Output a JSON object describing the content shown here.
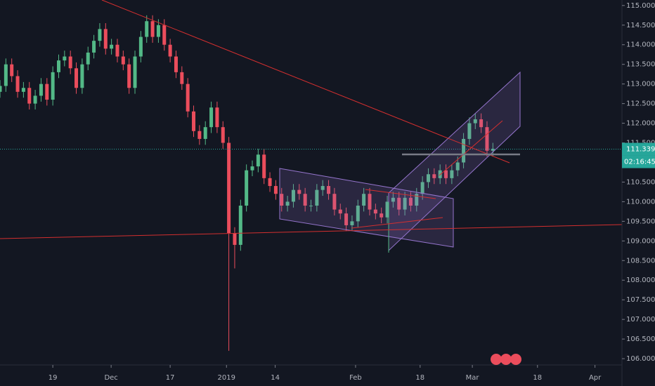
{
  "chart_data": {
    "type": "candlestick",
    "x": [
      -9,
      -8,
      -7,
      -6,
      -5,
      -4,
      -3,
      -2,
      -1,
      0,
      1,
      2,
      3,
      4,
      5,
      6,
      7,
      8,
      9,
      10,
      11,
      12,
      13,
      14,
      15,
      16,
      17,
      18,
      19,
      20,
      21,
      22,
      23,
      24,
      25,
      26,
      27,
      28,
      29,
      30,
      31,
      32,
      33,
      34,
      35,
      36,
      37,
      38,
      39,
      40,
      41,
      42,
      43,
      44,
      45,
      46,
      47,
      48,
      49,
      50,
      51,
      52,
      53,
      54,
      55,
      56,
      57,
      58,
      59,
      60,
      61,
      62,
      63,
      64,
      65,
      66,
      67,
      68,
      69,
      70,
      71,
      72,
      73,
      74,
      75
    ],
    "open": [
      112.8,
      112.95,
      113.5,
      113.2,
      112.8,
      112.9,
      112.5,
      112.7,
      113.0,
      112.6,
      113.3,
      113.6,
      113.7,
      113.4,
      112.9,
      113.5,
      113.8,
      114.1,
      114.4,
      113.9,
      114.0,
      113.7,
      113.5,
      112.9,
      113.7,
      114.2,
      114.6,
      114.2,
      114.5,
      114.0,
      113.7,
      113.3,
      113.0,
      112.3,
      111.8,
      111.6,
      111.9,
      112.4,
      111.9,
      111.5,
      109.2,
      108.9,
      109.9,
      110.8,
      110.9,
      111.2,
      110.6,
      110.4,
      110.2,
      109.9,
      110.0,
      110.3,
      110.2,
      109.9,
      109.9,
      110.3,
      110.4,
      110.2,
      109.8,
      109.7,
      109.4,
      109.5,
      109.9,
      110.2,
      109.8,
      109.7,
      109.6,
      110.0,
      110.1,
      109.8,
      110.1,
      109.9,
      110.2,
      110.5,
      110.7,
      110.6,
      110.8,
      110.6,
      110.8,
      111.0,
      111.6,
      112.0,
      112.1,
      111.9,
      111.3
    ],
    "high": [
      113.1,
      113.65,
      113.65,
      113.35,
      113.05,
      113.05,
      112.85,
      113.15,
      113.15,
      113.45,
      113.75,
      113.85,
      113.85,
      113.55,
      113.65,
      113.95,
      114.25,
      114.55,
      114.55,
      114.15,
      114.15,
      113.85,
      113.65,
      113.85,
      114.35,
      114.75,
      114.75,
      114.65,
      114.65,
      114.15,
      113.85,
      113.45,
      113.15,
      112.45,
      111.95,
      112.05,
      112.55,
      112.55,
      112.05,
      111.65,
      109.35,
      110.05,
      110.95,
      111.05,
      111.35,
      111.35,
      110.75,
      110.55,
      110.35,
      110.15,
      110.45,
      110.45,
      110.35,
      110.05,
      110.45,
      110.55,
      110.55,
      110.35,
      109.95,
      109.85,
      109.65,
      110.05,
      110.35,
      110.35,
      109.95,
      109.85,
      110.15,
      110.25,
      110.25,
      110.25,
      110.25,
      110.35,
      110.65,
      110.85,
      110.85,
      110.95,
      110.95,
      110.95,
      111.15,
      111.75,
      112.15,
      112.25,
      112.25,
      112.05,
      111.5
    ],
    "low": [
      112.65,
      112.8,
      113.05,
      112.65,
      112.65,
      112.35,
      112.35,
      112.55,
      112.45,
      112.45,
      113.15,
      113.45,
      113.25,
      112.75,
      112.75,
      113.35,
      113.65,
      113.95,
      113.75,
      113.75,
      113.55,
      113.35,
      112.75,
      112.75,
      113.55,
      114.05,
      114.05,
      114.05,
      113.85,
      113.55,
      113.15,
      112.85,
      112.15,
      111.65,
      111.45,
      111.45,
      111.75,
      111.75,
      111.35,
      106.2,
      108.3,
      108.75,
      109.75,
      110.65,
      110.75,
      110.45,
      110.25,
      110.05,
      109.75,
      109.75,
      109.85,
      110.05,
      109.75,
      109.75,
      109.75,
      110.15,
      110.05,
      109.65,
      109.55,
      109.25,
      109.25,
      109.35,
      109.75,
      109.65,
      109.55,
      109.45,
      109.45,
      109.85,
      109.65,
      109.65,
      109.75,
      109.75,
      110.05,
      110.35,
      110.45,
      110.45,
      110.45,
      110.45,
      110.65,
      110.85,
      111.45,
      111.85,
      111.75,
      111.15,
      111.15
    ],
    "close": [
      112.95,
      113.5,
      113.2,
      112.8,
      112.9,
      112.5,
      112.7,
      113.0,
      112.6,
      113.3,
      113.6,
      113.7,
      113.4,
      112.9,
      113.5,
      113.8,
      114.1,
      114.4,
      113.9,
      114.0,
      113.7,
      113.5,
      112.9,
      113.7,
      114.2,
      114.6,
      114.2,
      114.5,
      114.0,
      113.7,
      113.3,
      113.0,
      112.3,
      111.8,
      111.6,
      111.9,
      112.4,
      111.9,
      111.5,
      109.2,
      108.9,
      109.9,
      110.8,
      110.9,
      111.2,
      110.6,
      110.4,
      110.2,
      109.9,
      110.0,
      110.3,
      110.2,
      109.9,
      109.9,
      110.3,
      110.4,
      110.2,
      109.8,
      109.7,
      109.4,
      109.5,
      109.9,
      110.2,
      109.8,
      109.7,
      109.6,
      110.0,
      110.1,
      109.8,
      110.1,
      109.9,
      110.2,
      110.5,
      110.7,
      110.6,
      110.8,
      110.6,
      110.8,
      111.0,
      111.6,
      112.0,
      112.1,
      111.9,
      111.3,
      111.35
    ],
    "up_color": "#53b987",
    "down_color": "#eb4d5c",
    "xlim": [
      -9,
      97
    ],
    "xticks": [
      {
        "value": 0,
        "label": "19"
      },
      {
        "value": 9.94,
        "label": "Dec"
      },
      {
        "value": 20,
        "label": "17"
      },
      {
        "value": 29.6,
        "label": "2019"
      },
      {
        "value": 37.9,
        "label": "14"
      },
      {
        "value": 51.6,
        "label": "Feb"
      },
      {
        "value": 62.6,
        "label": "18"
      },
      {
        "value": 71.5,
        "label": "Mar"
      },
      {
        "value": 82.6,
        "label": "18"
      },
      {
        "value": 92.4,
        "label": "Apr"
      }
    ],
    "ylim": [
      105.84,
      115.14
    ],
    "yticks": [
      {
        "value": 106,
        "label": "106.000"
      },
      {
        "value": 106.5,
        "label": "106.500"
      },
      {
        "value": 107,
        "label": "107.000"
      },
      {
        "value": 107.5,
        "label": "107.500"
      },
      {
        "value": 108,
        "label": "108.000"
      },
      {
        "value": 108.5,
        "label": "108.500"
      },
      {
        "value": 109,
        "label": "109.000"
      },
      {
        "value": 109.5,
        "label": "109.500"
      },
      {
        "value": 110,
        "label": "110.000"
      },
      {
        "value": 110.5,
        "label": "110.500"
      },
      {
        "value": 111,
        "label": "111.000"
      },
      {
        "value": 111.5,
        "label": "111.500"
      },
      {
        "value": 112,
        "label": "112.000"
      },
      {
        "value": 112.5,
        "label": "112.500"
      },
      {
        "value": 113,
        "label": "113.000"
      },
      {
        "value": 113.5,
        "label": "113.500"
      },
      {
        "value": 114,
        "label": "114.000"
      },
      {
        "value": 114.5,
        "label": "114.500"
      },
      {
        "value": 115,
        "label": "115.000"
      }
    ],
    "last_price": 111.339,
    "last_price_color": "#26a69a",
    "countdown": "02:16:45"
  }
}
